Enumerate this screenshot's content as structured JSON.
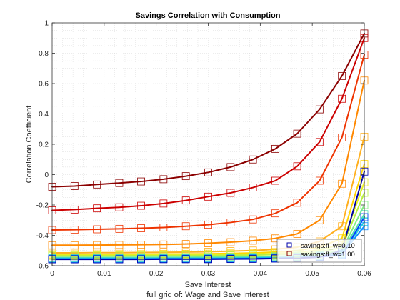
{
  "chart_data": {
    "type": "line",
    "title": "Savings Correlation with Consumption",
    "xlabel": "Save Interest",
    "ylabel": "Correlation Coefficient",
    "caption": "full grid of: Wage and Save Interest",
    "xlim": [
      0,
      0.06
    ],
    "ylim": [
      -0.6,
      1
    ],
    "grid": true,
    "grid_style": "dotted-minor",
    "x_ticks": [
      0,
      0.01,
      0.02,
      0.03,
      0.04,
      0.05,
      0.06
    ],
    "x_tick_labels": [
      "0",
      "0.01",
      "0.02",
      "0.03",
      "0.04",
      "0.05",
      "0.06"
    ],
    "y_ticks": [
      -0.6,
      -0.4,
      -0.2,
      0,
      0.2,
      0.4,
      0.6,
      0.8,
      1
    ],
    "y_tick_labels": [
      "-0.6",
      "-0.4",
      "-0.2",
      "0",
      "0.2",
      "0.4",
      "0.6",
      "0.8",
      "1"
    ],
    "legend_position": "bottom-right",
    "legend": [
      {
        "label": "savings:fl_w=0.10",
        "color": "#0000aa"
      },
      {
        "label": "savings:fl_w=1.00",
        "color": "#8b0000"
      }
    ],
    "x": [
      0,
      0.0043,
      0.0086,
      0.0129,
      0.0171,
      0.0214,
      0.0257,
      0.03,
      0.0343,
      0.0386,
      0.0429,
      0.0471,
      0.0514,
      0.0557,
      0.06
    ],
    "series": [
      {
        "color": "#8b0000",
        "values": [
          -0.08,
          -0.075,
          -0.065,
          -0.055,
          -0.045,
          -0.03,
          -0.01,
          0.015,
          0.05,
          0.1,
          0.17,
          0.27,
          0.43,
          0.65,
          0.93
        ]
      },
      {
        "color": "#cc0000",
        "values": [
          -0.235,
          -0.23,
          -0.222,
          -0.215,
          -0.205,
          -0.19,
          -0.17,
          -0.145,
          -0.12,
          -0.085,
          -0.04,
          0.055,
          0.215,
          0.5,
          0.9
        ]
      },
      {
        "color": "#ee3300",
        "values": [
          -0.365,
          -0.363,
          -0.36,
          -0.357,
          -0.353,
          -0.348,
          -0.34,
          -0.33,
          -0.315,
          -0.295,
          -0.255,
          -0.185,
          -0.04,
          0.245,
          0.79
        ]
      },
      {
        "color": "#ff8800",
        "values": [
          -0.465,
          -0.465,
          -0.464,
          -0.463,
          -0.462,
          -0.46,
          -0.457,
          -0.452,
          -0.445,
          -0.435,
          -0.42,
          -0.39,
          -0.3,
          -0.06,
          0.62
        ]
      },
      {
        "color": "#ffb020",
        "values": [
          -0.515,
          -0.515,
          -0.514,
          -0.514,
          -0.513,
          -0.512,
          -0.51,
          -0.508,
          -0.504,
          -0.5,
          -0.492,
          -0.478,
          -0.44,
          -0.34,
          0.25
        ]
      },
      {
        "color": "#ffd400",
        "values": [
          -0.525,
          -0.525,
          -0.525,
          -0.524,
          -0.524,
          -0.523,
          -0.522,
          -0.521,
          -0.519,
          -0.516,
          -0.51,
          -0.5,
          -0.478,
          -0.42,
          0.07
        ]
      },
      {
        "color": "#e8f020",
        "values": [
          -0.53,
          -0.53,
          -0.53,
          -0.53,
          -0.529,
          -0.529,
          -0.528,
          -0.527,
          -0.526,
          -0.524,
          -0.52,
          -0.512,
          -0.496,
          -0.46,
          -0.05
        ]
      },
      {
        "color": "#b8f040",
        "values": [
          -0.535,
          -0.535,
          -0.535,
          -0.535,
          -0.534,
          -0.534,
          -0.533,
          -0.533,
          -0.532,
          -0.53,
          -0.527,
          -0.521,
          -0.509,
          -0.48,
          -0.12
        ]
      },
      {
        "color": "#80ee80",
        "values": [
          -0.545,
          -0.545,
          -0.545,
          -0.545,
          -0.544,
          -0.544,
          -0.544,
          -0.543,
          -0.542,
          -0.541,
          -0.538,
          -0.534,
          -0.526,
          -0.5,
          -0.2
        ]
      },
      {
        "color": "#50e0b0",
        "values": [
          -0.548,
          -0.548,
          -0.548,
          -0.548,
          -0.548,
          -0.547,
          -0.547,
          -0.547,
          -0.546,
          -0.545,
          -0.543,
          -0.54,
          -0.532,
          -0.51,
          -0.26
        ]
      },
      {
        "color": "#20c8e0",
        "values": [
          -0.552,
          -0.552,
          -0.552,
          -0.552,
          -0.552,
          -0.551,
          -0.551,
          -0.551,
          -0.55,
          -0.549,
          -0.547,
          -0.544,
          -0.537,
          -0.52,
          -0.31
        ]
      },
      {
        "color": "#1090ff",
        "values": [
          -0.555,
          -0.555,
          -0.555,
          -0.555,
          -0.555,
          -0.554,
          -0.554,
          -0.554,
          -0.553,
          -0.552,
          -0.55,
          -0.547,
          -0.54,
          -0.525,
          -0.34
        ]
      },
      {
        "color": "#0040ff",
        "values": [
          -0.557,
          -0.557,
          -0.557,
          -0.557,
          -0.557,
          -0.556,
          -0.556,
          -0.556,
          -0.555,
          -0.554,
          -0.552,
          -0.549,
          -0.542,
          -0.53,
          -0.28
        ]
      },
      {
        "color": "#0000aa",
        "values": [
          -0.558,
          -0.558,
          -0.558,
          -0.558,
          -0.558,
          -0.557,
          -0.557,
          -0.557,
          -0.556,
          -0.555,
          -0.553,
          -0.55,
          -0.544,
          -0.5,
          0.02
        ]
      }
    ]
  }
}
